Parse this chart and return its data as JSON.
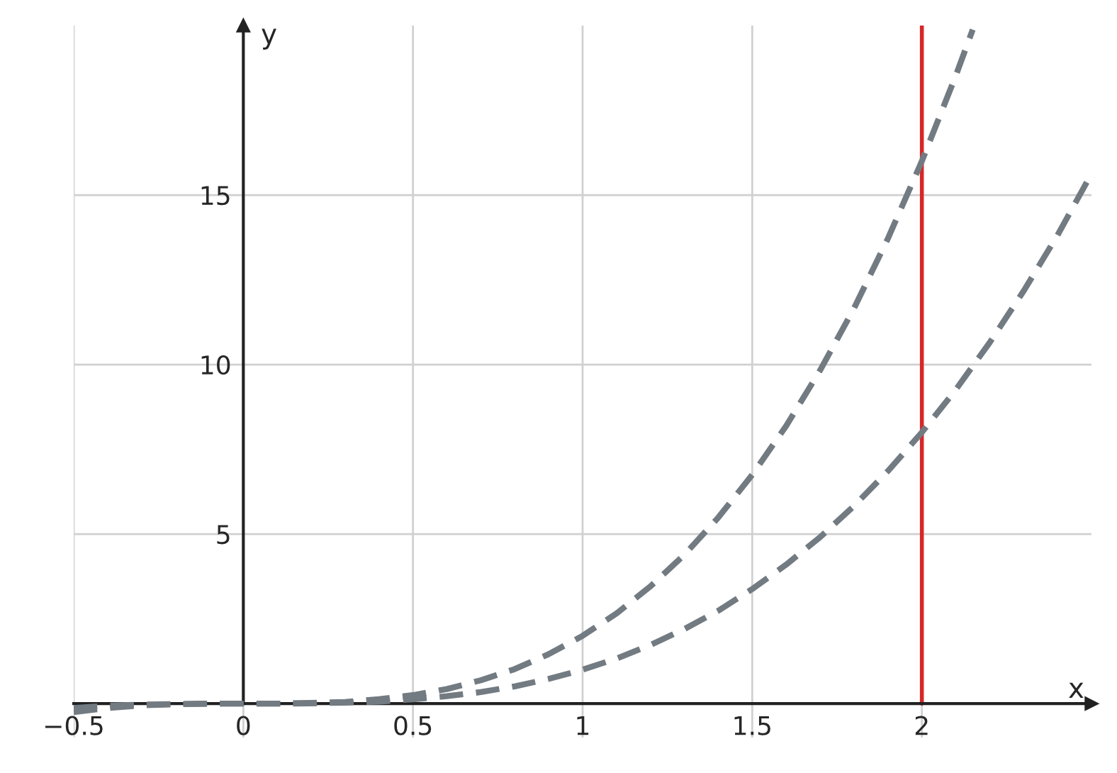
{
  "chart_data": {
    "type": "line",
    "xlabel": "x",
    "ylabel": "y",
    "xlim": [
      -0.5,
      2.5
    ],
    "ylim": [
      -1,
      20
    ],
    "xticks": [
      {
        "value": -0.5,
        "label": "−0.5"
      },
      0,
      0.5,
      1,
      1.5,
      2
    ],
    "yticks": [
      5,
      10,
      15
    ],
    "grid": true,
    "line_style": "dashed",
    "marker": "none",
    "series": [
      {
        "color": "#737b82",
        "x": [
          -0.5,
          -0.4,
          -0.3,
          -0.2,
          -0.1,
          0,
          0.1,
          0.2,
          0.3,
          0.4,
          0.5,
          0.6,
          0.7,
          0.8,
          0.9,
          1,
          1.1,
          1.2,
          1.3,
          1.4,
          1.5,
          1.6,
          1.7,
          1.8,
          1.9,
          2,
          2.1,
          2.15
        ],
        "values": [
          -0.25,
          -0.13,
          -0.05,
          -0.02,
          0,
          0,
          0,
          0.02,
          0.05,
          0.13,
          0.25,
          0.43,
          0.69,
          1.02,
          1.46,
          2,
          2.66,
          3.46,
          4.39,
          5.49,
          6.75,
          8.19,
          9.83,
          11.66,
          13.72,
          16,
          18.52,
          19.88
        ]
      },
      {
        "color": "#737b82",
        "x": [
          -0.5,
          -0.4,
          -0.3,
          -0.2,
          -0.1,
          0,
          0.1,
          0.2,
          0.3,
          0.4,
          0.5,
          0.6,
          0.7,
          0.8,
          0.9,
          1,
          1.1,
          1.2,
          1.3,
          1.4,
          1.5,
          1.6,
          1.7,
          1.8,
          1.9,
          2,
          2.1,
          2.2,
          2.3,
          2.4,
          2.5
        ],
        "values": [
          -0.13,
          -0.06,
          -0.03,
          -0.01,
          0,
          0,
          0,
          0.01,
          0.03,
          0.06,
          0.13,
          0.22,
          0.34,
          0.51,
          0.73,
          1,
          1.33,
          1.73,
          2.2,
          2.74,
          3.38,
          4.1,
          4.91,
          5.83,
          6.86,
          8,
          9.26,
          10.65,
          12.17,
          13.82,
          15.63
        ]
      }
    ],
    "ref_lines": [
      {
        "axis": "x",
        "value": 2,
        "color": "#d62728",
        "line_style": "solid"
      }
    ]
  }
}
